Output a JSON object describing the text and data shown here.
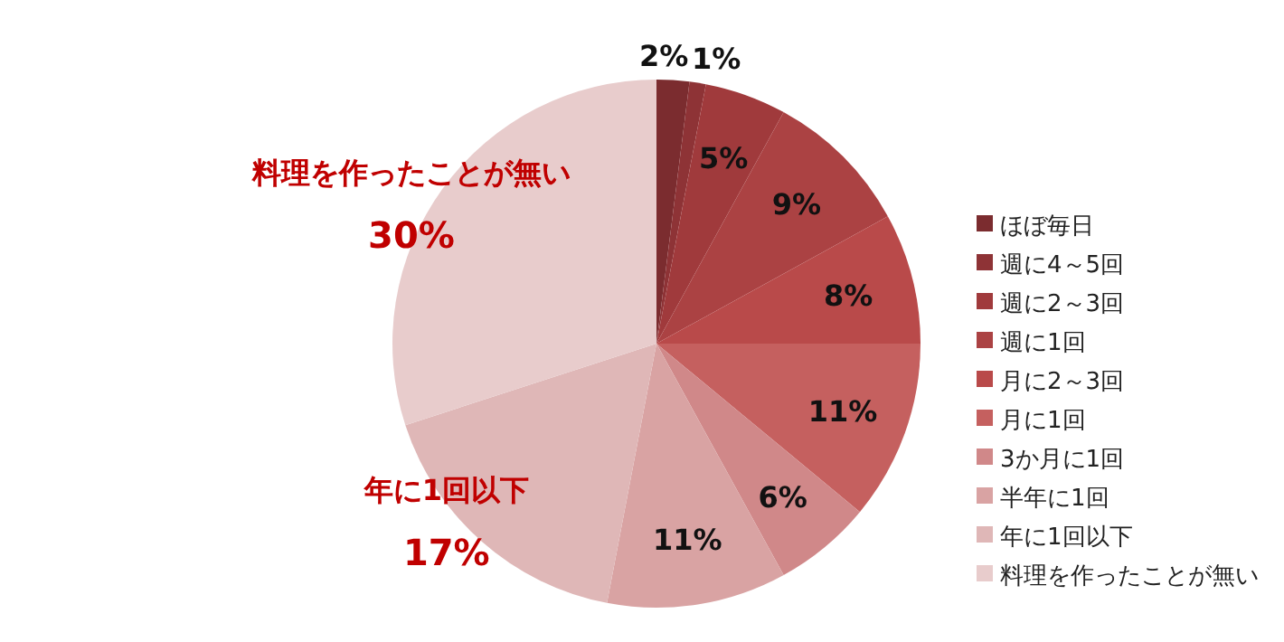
{
  "chart_data": {
    "type": "pie",
    "categories": [
      "ほぼ毎日",
      "週に4～5回",
      "週に2～3回",
      "週に1回",
      "月に2～3回",
      "月に1回",
      "3か月に1回",
      "半年に1回",
      "年に1回以下",
      "料理を作ったことが無い"
    ],
    "values": [
      2,
      1,
      5,
      9,
      8,
      11,
      6,
      11,
      17,
      30
    ],
    "colors": [
      "#7b2c2f",
      "#8e3336",
      "#a03a3c",
      "#ab4243",
      "#b94a4a",
      "#c5605f",
      "#d08889",
      "#d9a3a3",
      "#dfb7b7",
      "#e8cccc"
    ],
    "value_labels": [
      "2%",
      "1%",
      "5%",
      "9%",
      "8%",
      "11%",
      "6%",
      "11%",
      "17%",
      "30%"
    ],
    "legend": "right"
  }
}
